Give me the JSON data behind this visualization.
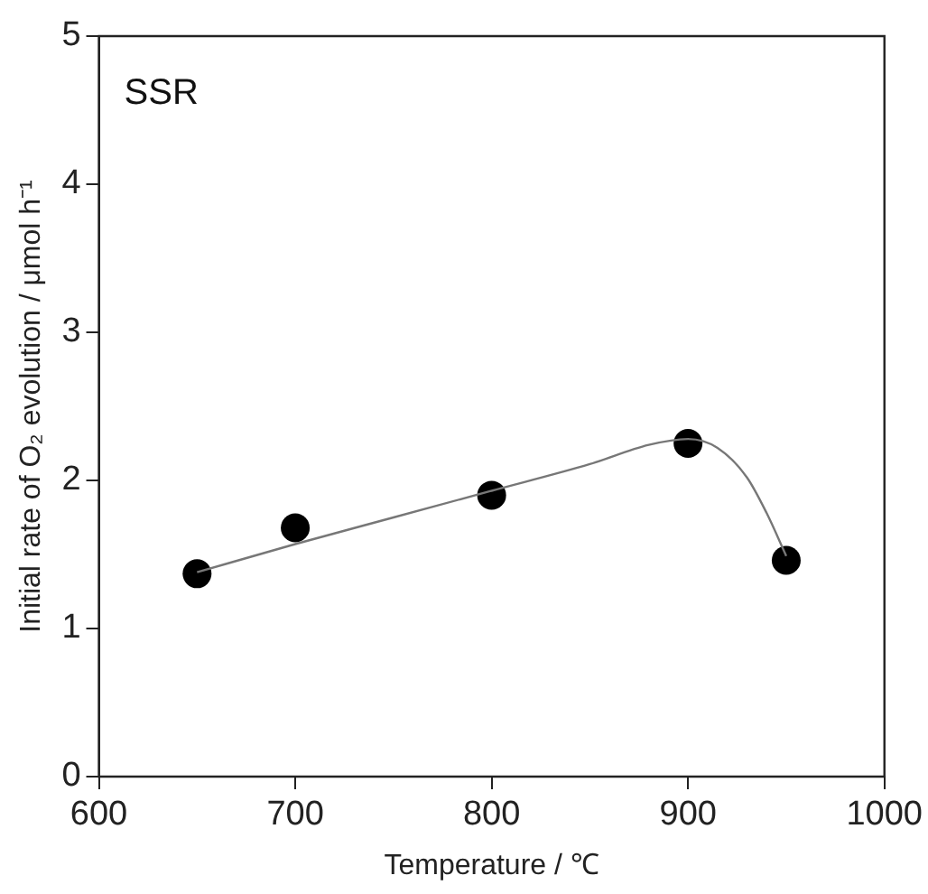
{
  "chart_data": {
    "type": "scatter",
    "xlabel": "Temperature / ℃",
    "ylabel": "Initial rate of O₂ evolution / μmol h⁻¹",
    "annotations": [
      "SSR"
    ],
    "xlim": [
      600,
      1000
    ],
    "xticks": [
      600,
      700,
      800,
      900,
      1000
    ],
    "ylim": [
      0,
      5
    ],
    "yticks": [
      0,
      1,
      2,
      3,
      4,
      5
    ],
    "grid": false,
    "legend": false,
    "series": [
      {
        "type": "line",
        "color": "#777777",
        "marker": "none",
        "line_style": "solid",
        "x": [
          650,
          700,
          750,
          800,
          850,
          880,
          900,
          915,
          930,
          940,
          950
        ],
        "values": [
          1.38,
          1.57,
          1.75,
          1.93,
          2.11,
          2.24,
          2.28,
          2.22,
          2.02,
          1.78,
          1.49
        ]
      },
      {
        "type": "scatter",
        "color": "#000000",
        "marker": "circle",
        "x": [
          650,
          700,
          800,
          900,
          950
        ],
        "values": [
          1.37,
          1.68,
          1.9,
          2.25,
          1.46
        ]
      }
    ]
  }
}
